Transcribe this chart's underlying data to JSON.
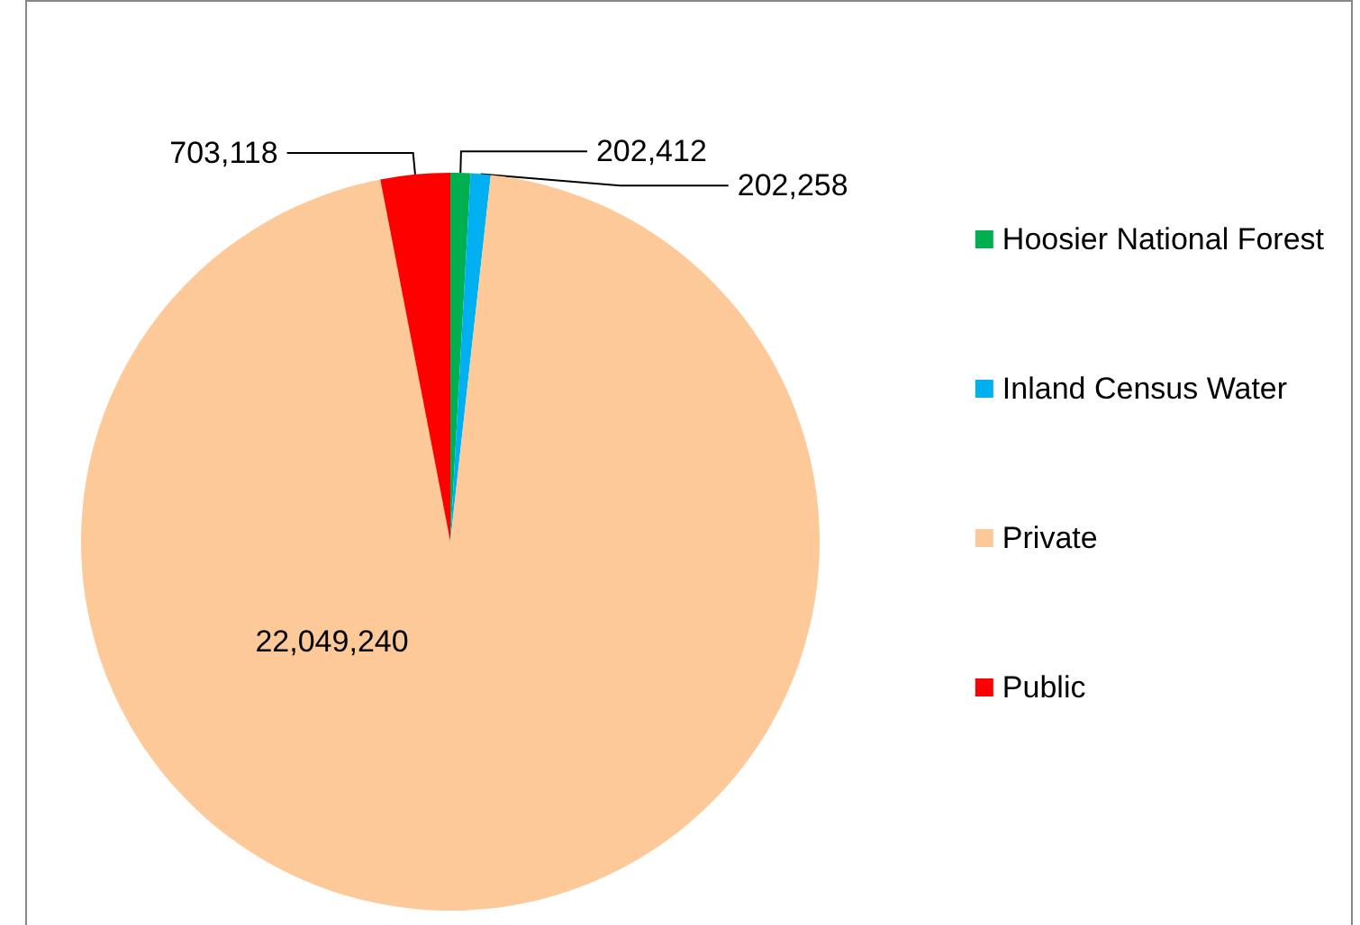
{
  "chart_data": {
    "type": "pie",
    "categories": [
      "Hoosier National Forest",
      "Inland Census Water",
      "Private",
      "Public"
    ],
    "values": [
      202412,
      202258,
      22049240,
      703118
    ],
    "colors": [
      "#00b050",
      "#00b0f0",
      "#fdc998",
      "#ff0000"
    ],
    "value_labels": [
      "202,412",
      "202,258",
      "22,049,240",
      "703,118"
    ],
    "legend": "right"
  }
}
